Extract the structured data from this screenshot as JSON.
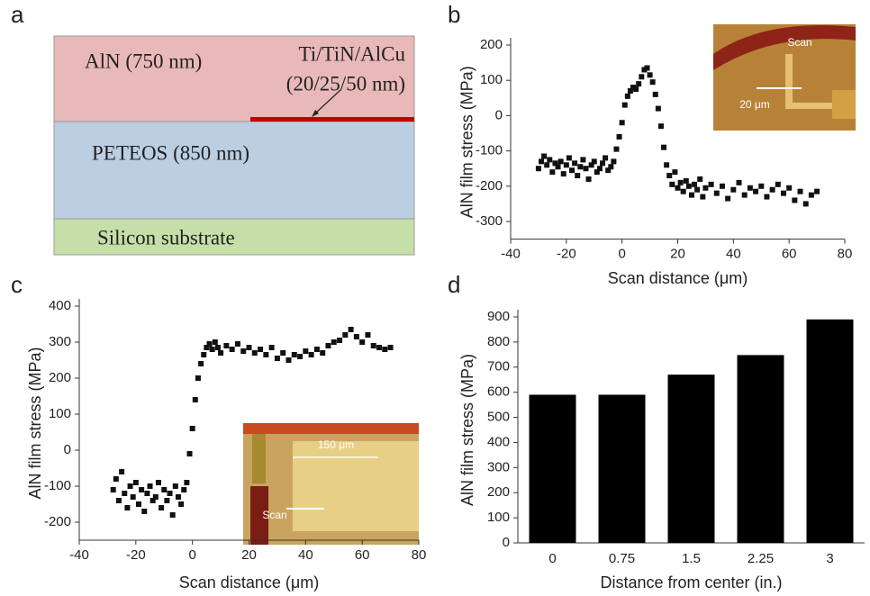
{
  "diagram": {
    "panel_label": "a",
    "layers": [
      {
        "label": "AlN (750 nm)",
        "color": "#e9b9b9"
      },
      {
        "label": "PETEOS (850 nm)",
        "color": "#bccfe2"
      },
      {
        "label": "Silicon substrate",
        "color": "#c6dea8"
      }
    ],
    "electrode": {
      "label": [
        "Ti/TiN/AlCu",
        "(20/25/50 nm)"
      ],
      "color": "#c00000"
    }
  },
  "chart_data": [
    {
      "type": "scatter",
      "panel_label": "b",
      "x_label": "Scan distance (μm)",
      "y_label": "AlN film stress (MPa)",
      "color": "#111111",
      "annotations": [
        "Scan",
        "20 μm"
      ],
      "x": [
        -30,
        -29,
        -28,
        -27,
        -26,
        -25,
        -24,
        -23,
        -22,
        -21,
        -20,
        -19,
        -18,
        -17,
        -16,
        -15,
        -14,
        -13,
        -12,
        -11,
        -10,
        -9,
        -8,
        -7,
        -6,
        -5,
        -4,
        -3,
        -2,
        -1,
        0,
        1,
        2,
        3,
        4,
        5,
        6,
        7,
        8,
        9,
        10,
        11,
        12,
        13,
        14,
        15,
        16,
        17,
        18,
        19,
        20,
        21,
        22,
        23,
        24,
        25,
        26,
        27,
        28,
        29,
        30,
        32,
        34,
        36,
        38,
        40,
        42,
        44,
        46,
        48,
        50,
        52,
        54,
        56,
        58,
        60,
        62,
        64,
        66,
        68,
        70
      ],
      "values": [
        -150,
        -130,
        -115,
        -140,
        -125,
        -160,
        -135,
        -145,
        -130,
        -165,
        -140,
        -120,
        -155,
        -135,
        -170,
        -145,
        -125,
        -150,
        -180,
        -140,
        -130,
        -160,
        -150,
        -135,
        -120,
        -155,
        -145,
        -130,
        -95,
        -60,
        -20,
        30,
        55,
        70,
        80,
        75,
        90,
        110,
        130,
        135,
        115,
        95,
        60,
        20,
        -30,
        -90,
        -140,
        -170,
        -195,
        -160,
        -205,
        -190,
        -215,
        -185,
        -200,
        -225,
        -195,
        -210,
        -180,
        -230,
        -205,
        -195,
        -220,
        -200,
        -235,
        -210,
        -190,
        -225,
        -205,
        -215,
        -200,
        -230,
        -210,
        -195,
        -220,
        -205,
        -240,
        -215,
        -250,
        -225,
        -215
      ],
      "xlim": [
        -40,
        80
      ],
      "xticks": [
        -40,
        -20,
        0,
        20,
        40,
        60,
        80
      ],
      "ylim": [
        -350,
        200
      ],
      "yticks": [
        -300,
        -200,
        -100,
        0,
        100,
        200
      ]
    },
    {
      "type": "scatter",
      "panel_label": "c",
      "x_label": "Scan distance (μm)",
      "y_label": "AlN film stress (MPa)",
      "color": "#111111",
      "annotations": [
        "150 μm",
        "Scan"
      ],
      "x": [
        -28,
        -27,
        -26,
        -25,
        -24,
        -23,
        -22,
        -21,
        -20,
        -19,
        -18,
        -17,
        -16,
        -15,
        -14,
        -13,
        -12,
        -11,
        -10,
        -9,
        -8,
        -7,
        -6,
        -5,
        -4,
        -3,
        -2,
        -1,
        0,
        1,
        2,
        3,
        4,
        5,
        6,
        7,
        8,
        9,
        10,
        12,
        14,
        16,
        18,
        20,
        22,
        24,
        26,
        28,
        30,
        32,
        34,
        36,
        38,
        40,
        42,
        44,
        46,
        48,
        50,
        52,
        54,
        56,
        58,
        60,
        62,
        64,
        66,
        68,
        70
      ],
      "values": [
        -110,
        -80,
        -140,
        -60,
        -120,
        -160,
        -100,
        -130,
        -90,
        -150,
        -110,
        -170,
        -120,
        -100,
        -140,
        -130,
        -90,
        -160,
        -110,
        -140,
        -120,
        -180,
        -100,
        -130,
        -150,
        -110,
        -90,
        -10,
        60,
        140,
        200,
        240,
        265,
        285,
        295,
        280,
        300,
        285,
        270,
        290,
        280,
        295,
        275,
        285,
        270,
        280,
        265,
        285,
        255,
        270,
        250,
        265,
        260,
        275,
        265,
        280,
        270,
        290,
        300,
        305,
        320,
        335,
        315,
        300,
        320,
        290,
        285,
        280,
        285
      ],
      "xlim": [
        -40,
        80
      ],
      "xticks": [
        -40,
        -20,
        0,
        20,
        40,
        60,
        80
      ],
      "ylim": [
        -250,
        400
      ],
      "yticks": [
        -200,
        -100,
        0,
        100,
        200,
        300,
        400
      ]
    },
    {
      "type": "bar",
      "panel_label": "d",
      "x_label": "Distance from center (in.)",
      "y_label": "AlN film stress (MPa)",
      "color": "#000000",
      "categories": [
        "0",
        "0.75",
        "1.5",
        "2.25",
        "3"
      ],
      "values": [
        590,
        590,
        670,
        748,
        890
      ],
      "ylim": [
        0,
        900
      ],
      "yticks": [
        0,
        100,
        200,
        300,
        400,
        500,
        600,
        700,
        800,
        900
      ]
    }
  ]
}
